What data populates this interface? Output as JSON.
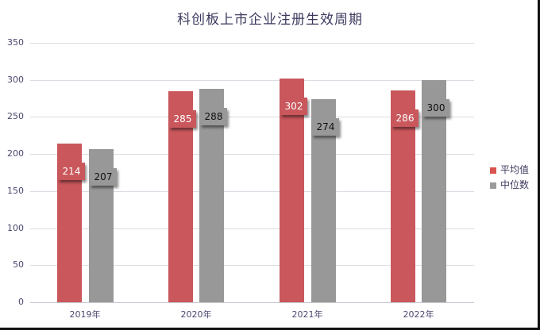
{
  "chart_data": {
    "type": "bar",
    "title": "科创板上市企业注册生效周期",
    "categories": [
      "2019年",
      "2020年",
      "2021年",
      "2022年"
    ],
    "series": [
      {
        "name": "平均值",
        "color": "#c9575c",
        "values": [
          214,
          285,
          302,
          286
        ]
      },
      {
        "name": "中位数",
        "color": "#989898",
        "values": [
          207,
          288,
          274,
          300
        ]
      }
    ],
    "xlabel": "",
    "ylabel": "",
    "ylim": [
      0,
      350
    ],
    "yticks": [
      0,
      50,
      100,
      150,
      200,
      250,
      300,
      350
    ],
    "grid": true,
    "legend_position": "right",
    "data_labels": true
  },
  "labels": {
    "title": "科创板上市企业注册生效周期",
    "yticks": [
      "0",
      "50",
      "100",
      "150",
      "200",
      "250",
      "300",
      "350"
    ],
    "xticks": [
      "2019年",
      "2020年",
      "2021年",
      "2022年"
    ],
    "legend": [
      "平均值",
      "中位数"
    ],
    "red_vals": [
      "214",
      "285",
      "302",
      "286"
    ],
    "gray_vals": [
      "207",
      "288",
      "274",
      "300"
    ]
  }
}
